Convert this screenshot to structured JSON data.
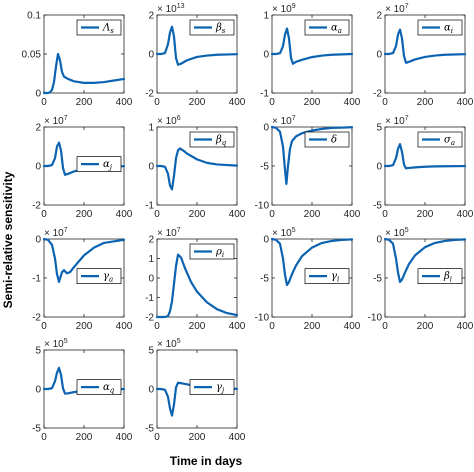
{
  "figure": {
    "ylabel": "Semi-relative sensitivity",
    "xlabel": "Time in days"
  },
  "colors": {
    "line": "#0b63b1",
    "axes": "#262626",
    "legend_border": "#000000"
  },
  "chart_data": [
    {
      "type": "line",
      "legend_base": "Λ",
      "legend_sub": "s",
      "sci_exp": "",
      "yticks": [
        "0",
        "0.05",
        "0.1"
      ],
      "ylim": [
        0,
        0.1
      ],
      "xlim": [
        0,
        400
      ],
      "xticks": [
        "0",
        "200",
        "400"
      ],
      "x": [
        0,
        10,
        20,
        30,
        40,
        50,
        60,
        70,
        80,
        90,
        100,
        120,
        150,
        200,
        250,
        300,
        350,
        400
      ],
      "y": [
        0,
        0,
        0,
        0.001,
        0.004,
        0.014,
        0.034,
        0.05,
        0.042,
        0.027,
        0.021,
        0.018,
        0.015,
        0.013,
        0.013,
        0.014,
        0.016,
        0.018
      ]
    },
    {
      "type": "line",
      "legend_base": "β",
      "legend_sub": "s",
      "sci_exp": "13",
      "yticks": [
        "-2",
        "0",
        "2"
      ],
      "ylim": [
        -2,
        2
      ],
      "xlim": [
        0,
        400
      ],
      "xticks": [
        "0",
        "200",
        "400"
      ],
      "x": [
        0,
        20,
        40,
        55,
        65,
        75,
        85,
        95,
        105,
        120,
        150,
        200,
        250,
        300,
        400
      ],
      "y": [
        0,
        0,
        0.05,
        0.5,
        1.1,
        1.4,
        0.9,
        -0.2,
        -0.55,
        -0.5,
        -0.32,
        -0.15,
        -0.08,
        -0.04,
        -0.01
      ]
    },
    {
      "type": "line",
      "legend_base": "α",
      "legend_sub": "a",
      "sci_exp": "9",
      "yticks": [
        "-1",
        "0",
        "1"
      ],
      "ylim": [
        -1,
        1
      ],
      "xlim": [
        0,
        400
      ],
      "xticks": [
        "0",
        "200",
        "400"
      ],
      "x": [
        0,
        20,
        40,
        55,
        65,
        75,
        85,
        95,
        105,
        120,
        150,
        200,
        250,
        300,
        400
      ],
      "y": [
        0,
        0,
        0.02,
        0.2,
        0.5,
        0.65,
        0.4,
        -0.1,
        -0.25,
        -0.2,
        -0.15,
        -0.08,
        -0.04,
        -0.02,
        0
      ]
    },
    {
      "type": "line",
      "legend_base": "α",
      "legend_sub": "i",
      "sci_exp": "7",
      "yticks": [
        "-2",
        "0",
        "2"
      ],
      "ylim": [
        -2,
        2
      ],
      "xlim": [
        0,
        400
      ],
      "xticks": [
        "0",
        "200",
        "400"
      ],
      "x": [
        0,
        20,
        40,
        55,
        65,
        75,
        85,
        95,
        105,
        120,
        150,
        200,
        250,
        300,
        400
      ],
      "y": [
        0,
        0,
        0.05,
        0.4,
        1.0,
        1.25,
        0.8,
        -0.1,
        -0.45,
        -0.4,
        -0.28,
        -0.15,
        -0.08,
        -0.04,
        -0.01
      ]
    },
    {
      "type": "line",
      "legend_base": "α",
      "legend_sub": "j",
      "sci_exp": "7",
      "yticks": [
        "-2",
        "0",
        "2"
      ],
      "ylim": [
        -2,
        2
      ],
      "xlim": [
        0,
        400
      ],
      "xticks": [
        "0",
        "200",
        "400"
      ],
      "x": [
        0,
        20,
        40,
        55,
        65,
        75,
        85,
        95,
        105,
        120,
        150,
        200,
        250,
        300,
        400
      ],
      "y": [
        0,
        0,
        0.05,
        0.4,
        1.0,
        1.2,
        0.8,
        -0.1,
        -0.45,
        -0.4,
        -0.28,
        -0.15,
        -0.08,
        -0.04,
        -0.01
      ]
    },
    {
      "type": "line",
      "legend_base": "β",
      "legend_sub": "q",
      "sci_exp": "6",
      "yticks": [
        "-1",
        "0",
        "1"
      ],
      "ylim": [
        -1,
        1
      ],
      "xlim": [
        0,
        400
      ],
      "xticks": [
        "0",
        "200",
        "400"
      ],
      "x": [
        0,
        20,
        40,
        55,
        65,
        75,
        85,
        95,
        105,
        115,
        130,
        150,
        200,
        250,
        300,
        400
      ],
      "y": [
        0,
        0,
        -0.02,
        -0.2,
        -0.5,
        -0.6,
        -0.25,
        0.2,
        0.4,
        0.45,
        0.4,
        0.32,
        0.17,
        0.08,
        0.04,
        0.01
      ]
    },
    {
      "type": "line",
      "legend_base": "δ",
      "legend_sub": "",
      "sci_exp": "7",
      "yticks": [
        "-10",
        "-5",
        "0"
      ],
      "ylim": [
        -10,
        0
      ],
      "xlim": [
        0,
        400
      ],
      "xticks": [
        "0",
        "200",
        "400"
      ],
      "x": [
        0,
        20,
        40,
        55,
        65,
        72,
        80,
        90,
        100,
        120,
        150,
        200,
        250,
        300,
        400
      ],
      "y": [
        0,
        -0.1,
        -0.6,
        -2.5,
        -5.5,
        -7.3,
        -5.0,
        -2.8,
        -1.8,
        -1.2,
        -0.8,
        -0.45,
        -0.25,
        -0.12,
        -0.03
      ]
    },
    {
      "type": "line",
      "legend_base": "σ",
      "legend_sub": "a",
      "sci_exp": "7",
      "yticks": [
        "-5",
        "0",
        "5"
      ],
      "ylim": [
        -5,
        5
      ],
      "xlim": [
        0,
        400
      ],
      "xticks": [
        "0",
        "200",
        "400"
      ],
      "x": [
        0,
        20,
        40,
        55,
        65,
        75,
        85,
        95,
        105,
        120,
        150,
        200,
        250,
        300,
        400
      ],
      "y": [
        0,
        0,
        0.1,
        1.0,
        2.2,
        2.8,
        1.8,
        0.2,
        -0.3,
        -0.25,
        -0.18,
        -0.1,
        -0.05,
        -0.03,
        -0.01
      ]
    },
    {
      "type": "line",
      "legend_base": "γ",
      "legend_sub": "a",
      "sci_exp": "7",
      "yticks": [
        "-2",
        "-1",
        "0"
      ],
      "ylim": [
        -2,
        0
      ],
      "xlim": [
        0,
        400
      ],
      "xticks": [
        "0",
        "200",
        "400"
      ],
      "x": [
        0,
        20,
        40,
        55,
        65,
        75,
        82,
        90,
        100,
        115,
        130,
        150,
        200,
        250,
        300,
        400
      ],
      "y": [
        0,
        -0.02,
        -0.15,
        -0.5,
        -0.9,
        -1.1,
        -0.98,
        -0.85,
        -0.8,
        -0.88,
        -0.85,
        -0.72,
        -0.42,
        -0.22,
        -0.1,
        -0.02
      ]
    },
    {
      "type": "line",
      "legend_base": "ρ",
      "legend_sub": "i",
      "sci_exp": "7",
      "yticks": [
        "-2",
        "-1",
        "0",
        "1",
        "2"
      ],
      "ylim": [
        -2,
        2
      ],
      "xlim": [
        0,
        400
      ],
      "xticks": [
        "0",
        "200",
        "400"
      ],
      "x": [
        0,
        20,
        40,
        55,
        65,
        75,
        85,
        95,
        105,
        120,
        140,
        170,
        200,
        250,
        300,
        350,
        400
      ],
      "y": [
        -2,
        -2,
        -2,
        -1.95,
        -1.7,
        -1.2,
        -0.3,
        0.6,
        1.2,
        1.05,
        0.5,
        -0.2,
        -0.7,
        -1.25,
        -1.6,
        -1.8,
        -1.9
      ]
    },
    {
      "type": "line",
      "legend_base": "γ",
      "legend_sub": "i",
      "sci_exp": "5",
      "yticks": [
        "-10",
        "-5",
        "0"
      ],
      "ylim": [
        -10,
        0
      ],
      "xlim": [
        0,
        400
      ],
      "xticks": [
        "0",
        "200",
        "400"
      ],
      "x": [
        0,
        20,
        40,
        55,
        65,
        75,
        85,
        100,
        120,
        150,
        200,
        250,
        300,
        350,
        400
      ],
      "y": [
        0,
        -0.1,
        -0.6,
        -2.5,
        -4.6,
        -5.9,
        -5.5,
        -4.5,
        -3.4,
        -2.2,
        -1.1,
        -0.5,
        -0.25,
        -0.12,
        -0.05
      ]
    },
    {
      "type": "line",
      "legend_base": "β",
      "legend_sub": "i",
      "sci_exp": "5",
      "yticks": [
        "-10",
        "-5",
        "0"
      ],
      "ylim": [
        -10,
        0
      ],
      "xlim": [
        0,
        400
      ],
      "xticks": [
        "0",
        "200",
        "400"
      ],
      "x": [
        0,
        20,
        40,
        55,
        65,
        75,
        85,
        100,
        120,
        150,
        200,
        250,
        300,
        350,
        400
      ],
      "y": [
        0,
        -0.1,
        -0.6,
        -2.5,
        -4.3,
        -5.5,
        -5.2,
        -4.3,
        -3.2,
        -2.1,
        -1.05,
        -0.5,
        -0.25,
        -0.12,
        -0.05
      ]
    },
    {
      "type": "line",
      "legend_base": "α",
      "legend_sub": "q",
      "sci_exp": "5",
      "yticks": [
        "-5",
        "0",
        "5"
      ],
      "ylim": [
        -5,
        5
      ],
      "xlim": [
        0,
        400
      ],
      "xticks": [
        "0",
        "200",
        "400"
      ],
      "x": [
        0,
        20,
        40,
        55,
        65,
        75,
        85,
        95,
        105,
        120,
        150,
        200,
        250,
        300,
        400
      ],
      "y": [
        0,
        0,
        0.1,
        1.0,
        2.1,
        2.7,
        1.8,
        0.1,
        -0.6,
        -0.55,
        -0.4,
        -0.2,
        -0.1,
        -0.05,
        -0.01
      ]
    },
    {
      "type": "line",
      "legend_base": "γ",
      "legend_sub": "j",
      "sci_exp": "5",
      "yticks": [
        "-5",
        "0",
        "5"
      ],
      "ylim": [
        -5,
        5
      ],
      "xlim": [
        0,
        400
      ],
      "xticks": [
        "0",
        "200",
        "400"
      ],
      "x": [
        0,
        20,
        40,
        55,
        65,
        75,
        85,
        95,
        105,
        120,
        150,
        200,
        250,
        300,
        400
      ],
      "y": [
        0,
        0,
        -0.1,
        -1.0,
        -2.5,
        -3.4,
        -2.0,
        0.2,
        0.8,
        0.75,
        0.6,
        0.35,
        0.18,
        0.08,
        0.02
      ]
    }
  ]
}
